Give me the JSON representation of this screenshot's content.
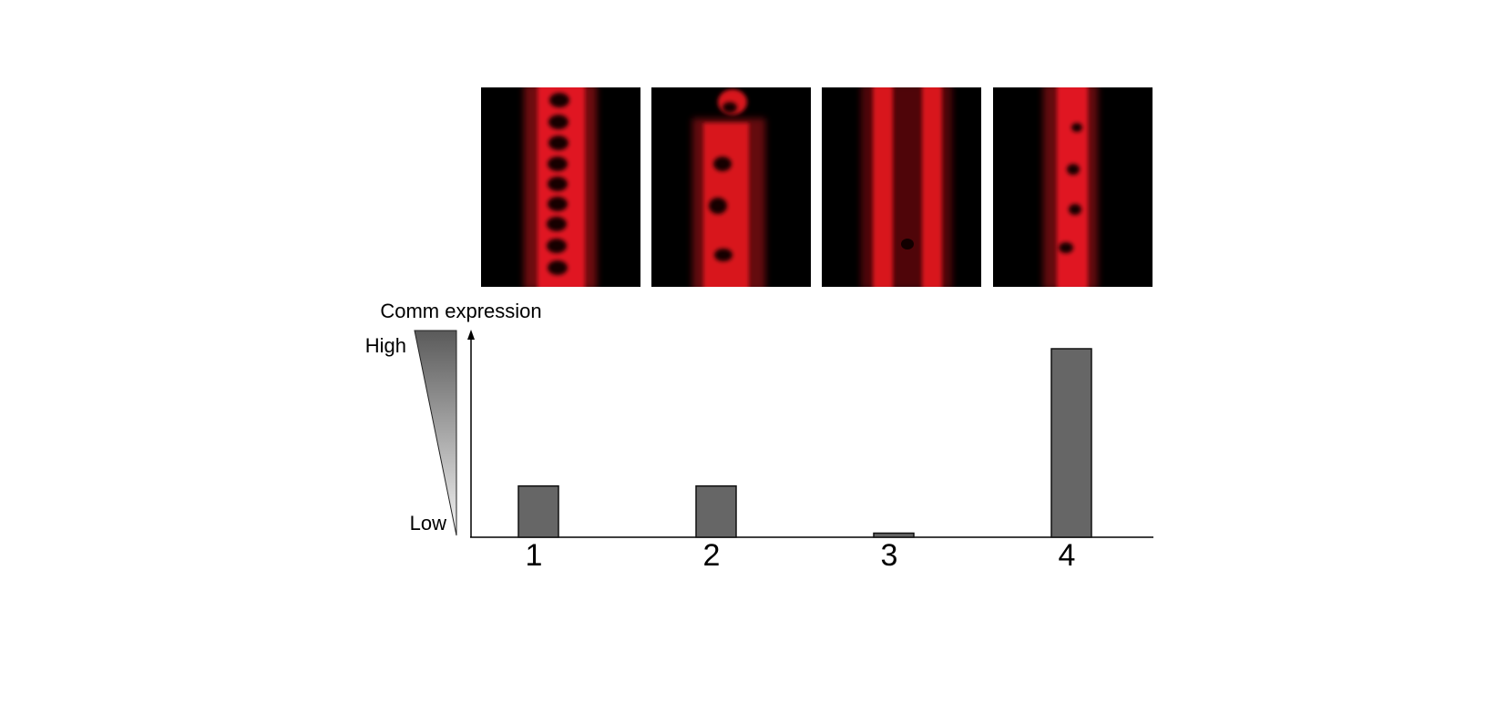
{
  "chart_data": {
    "type": "bar",
    "ylabel": "Comm expression",
    "gradient_labels": [
      "High",
      "Low"
    ],
    "categories": [
      "1",
      "2",
      "3",
      "4"
    ],
    "values": [
      25,
      25,
      2,
      92
    ],
    "color": "#666666",
    "ylim": [
      0,
      100
    ]
  }
}
